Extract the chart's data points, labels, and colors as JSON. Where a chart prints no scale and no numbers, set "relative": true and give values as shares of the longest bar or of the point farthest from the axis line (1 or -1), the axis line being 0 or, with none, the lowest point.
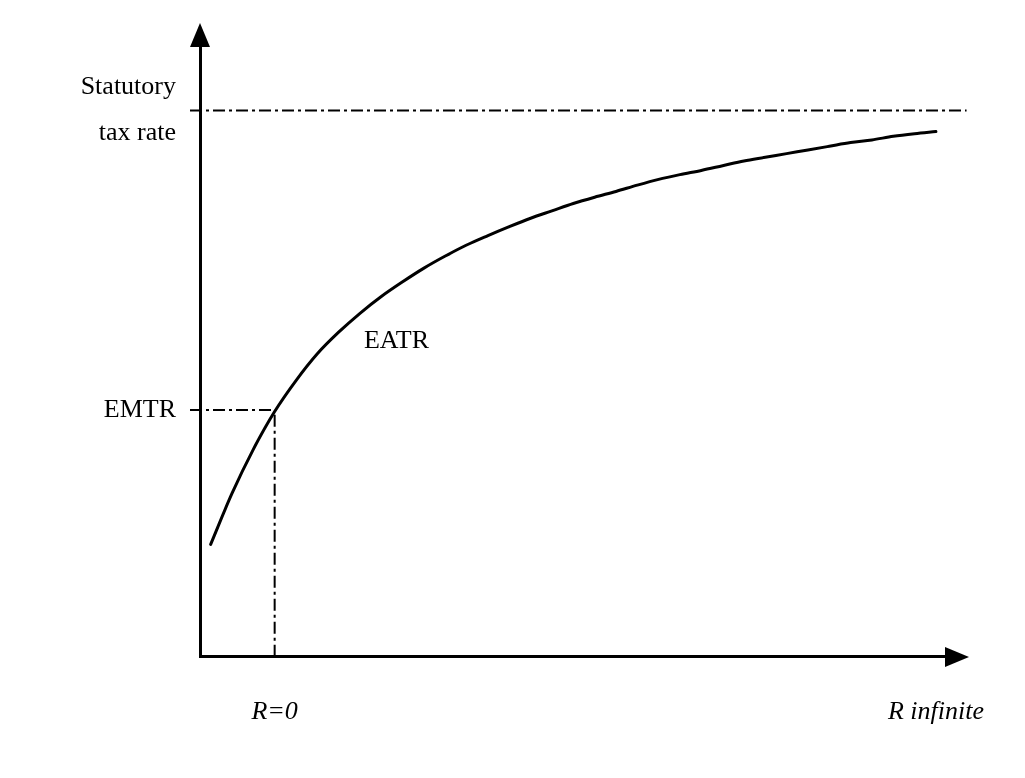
{
  "chart_data": {
    "type": "line",
    "relative": true,
    "legend": false,
    "grid": false,
    "marker": "none",
    "line_style": "solid",
    "categories": [
      null,
      null,
      null,
      "R=0",
      null,
      null,
      null,
      null,
      null,
      null,
      null,
      null,
      null,
      null,
      null,
      null,
      null,
      null,
      null,
      null,
      null,
      null,
      null,
      null,
      null,
      null,
      null,
      null,
      null,
      null,
      null,
      null,
      null,
      null,
      "R infinite"
    ],
    "series": [
      {
        "name": "EATR",
        "color": "#000000",
        "values": [
          0.214,
          0.311,
          0.395,
          0.467,
          0.526,
          0.577,
          0.618,
          0.654,
          0.686,
          0.714,
          0.74,
          0.763,
          0.784,
          0.802,
          0.819,
          0.835,
          0.849,
          0.863,
          0.875,
          0.886,
          0.898,
          0.909,
          0.918,
          0.926,
          0.935,
          0.944,
          0.951,
          0.958,
          0.965,
          0.972,
          0.979,
          0.984,
          0.991,
          0.996,
          1.0
        ]
      }
    ],
    "ref_lines": [
      {
        "axis": "y",
        "value": 1.04,
        "label": "Statutory tax rate",
        "color": "#000000",
        "line_style": "dashed"
      },
      {
        "axis": "y",
        "value": 0.47,
        "label": "EMTR",
        "color": "#000000",
        "line_style": "dashed"
      },
      {
        "axis": "x",
        "value": "R=0",
        "color": "#000000",
        "line_style": "dashed"
      }
    ]
  }
}
